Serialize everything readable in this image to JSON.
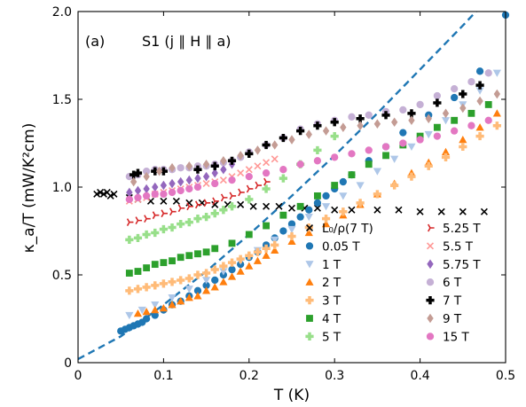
{
  "chart_data": {
    "type": "scatter",
    "panel_label": "(a)",
    "title": "S1 (j ∥ H ∥ a)",
    "xlabel": "T (K)",
    "ylabel": "κ_a/T (mW/K²cm)",
    "xlim": [
      0,
      0.5
    ],
    "ylim": [
      0,
      2.0
    ],
    "xticks": [
      "0",
      "0.1",
      "0.2",
      "0.3",
      "0.4",
      "0.5"
    ],
    "yticks": [
      "0",
      "0.5",
      "1.0",
      "1.5",
      "2.0"
    ],
    "grid": false,
    "legend_position": "lower-right, two columns",
    "dashed_fit": {
      "color": "#1f77b4",
      "x": [
        0,
        0.05,
        0.1,
        0.15,
        0.2,
        0.25,
        0.3,
        0.35,
        0.4,
        0.45,
        0.5
      ],
      "y": [
        0.02,
        0.15,
        0.33,
        0.52,
        0.73,
        0.95,
        1.18,
        1.42,
        1.67,
        1.92,
        2.18
      ]
    },
    "series": [
      {
        "name": "L₀/ρ(7 T)",
        "marker": "x",
        "color": "#000000",
        "x": [
          0.022,
          0.026,
          0.03,
          0.034,
          0.038,
          0.042,
          0.06,
          0.07,
          0.085,
          0.1,
          0.115,
          0.13,
          0.145,
          0.16,
          0.175,
          0.19,
          0.205,
          0.22,
          0.235,
          0.25,
          0.265,
          0.28,
          0.3,
          0.32,
          0.35,
          0.375,
          0.4,
          0.425,
          0.45,
          0.475
        ],
        "y": [
          0.96,
          0.97,
          0.96,
          0.97,
          0.95,
          0.96,
          0.94,
          0.93,
          0.92,
          0.92,
          0.92,
          0.91,
          0.91,
          0.9,
          0.9,
          0.9,
          0.89,
          0.89,
          0.89,
          0.88,
          0.88,
          0.88,
          0.87,
          0.87,
          0.87,
          0.87,
          0.86,
          0.86,
          0.86,
          0.86
        ]
      },
      {
        "name": "0.05 T",
        "marker": "circle",
        "color": "#1f77b4",
        "x": [
          0.05,
          0.055,
          0.06,
          0.065,
          0.07,
          0.075,
          0.08,
          0.09,
          0.1,
          0.11,
          0.12,
          0.13,
          0.14,
          0.15,
          0.16,
          0.17,
          0.18,
          0.19,
          0.2,
          0.21,
          0.22,
          0.23,
          0.24,
          0.25,
          0.26,
          0.27,
          0.28,
          0.29,
          0.3,
          0.31,
          0.32,
          0.34,
          0.36,
          0.38,
          0.41,
          0.44,
          0.47,
          0.5
        ],
        "y": [
          0.18,
          0.19,
          0.2,
          0.21,
          0.22,
          0.23,
          0.25,
          0.27,
          0.3,
          0.33,
          0.35,
          0.38,
          0.41,
          0.44,
          0.47,
          0.5,
          0.53,
          0.56,
          0.6,
          0.63,
          0.67,
          0.71,
          0.75,
          0.79,
          0.83,
          0.87,
          0.91,
          0.95,
          0.99,
          1.03,
          1.07,
          1.15,
          1.23,
          1.31,
          1.41,
          1.51,
          1.66,
          1.98
        ]
      },
      {
        "name": "1 T",
        "marker": "triangle-down",
        "color": "#aec7e8",
        "x": [
          0.06,
          0.075,
          0.09,
          0.11,
          0.13,
          0.15,
          0.17,
          0.19,
          0.21,
          0.23,
          0.25,
          0.27,
          0.29,
          0.31,
          0.33,
          0.35,
          0.37,
          0.39,
          0.41,
          0.43,
          0.45,
          0.47,
          0.49
        ],
        "y": [
          0.27,
          0.3,
          0.33,
          0.37,
          0.42,
          0.47,
          0.52,
          0.58,
          0.64,
          0.7,
          0.76,
          0.83,
          0.89,
          0.95,
          1.01,
          1.09,
          1.16,
          1.23,
          1.3,
          1.38,
          1.47,
          1.55,
          1.65
        ]
      },
      {
        "name": "2 T",
        "marker": "triangle-up",
        "color": "#ff7f0e",
        "x": [
          0.07,
          0.08,
          0.09,
          0.1,
          0.11,
          0.12,
          0.13,
          0.14,
          0.15,
          0.16,
          0.17,
          0.18,
          0.19,
          0.2,
          0.21,
          0.22,
          0.23,
          0.25,
          0.27,
          0.29,
          0.31,
          0.33,
          0.35,
          0.37,
          0.39,
          0.41,
          0.43,
          0.45,
          0.47,
          0.49
        ],
        "y": [
          0.28,
          0.29,
          0.3,
          0.31,
          0.33,
          0.35,
          0.37,
          0.38,
          0.41,
          0.43,
          0.46,
          0.49,
          0.52,
          0.55,
          0.58,
          0.61,
          0.64,
          0.69,
          0.74,
          0.79,
          0.84,
          0.9,
          0.96,
          1.02,
          1.08,
          1.14,
          1.2,
          1.27,
          1.34,
          1.42
        ]
      },
      {
        "name": "3 T",
        "marker": "plus-filled",
        "color": "#ffbb78",
        "x": [
          0.06,
          0.07,
          0.08,
          0.09,
          0.1,
          0.11,
          0.12,
          0.13,
          0.14,
          0.15,
          0.16,
          0.17,
          0.18,
          0.19,
          0.2,
          0.21,
          0.22,
          0.23,
          0.25,
          0.27,
          0.29,
          0.31,
          0.33,
          0.35,
          0.37,
          0.39,
          0.41,
          0.43,
          0.45,
          0.47,
          0.49
        ],
        "y": [
          0.41,
          0.42,
          0.43,
          0.44,
          0.45,
          0.46,
          0.47,
          0.48,
          0.5,
          0.51,
          0.53,
          0.55,
          0.57,
          0.59,
          0.61,
          0.63,
          0.65,
          0.67,
          0.72,
          0.77,
          0.82,
          0.86,
          0.91,
          0.96,
          1.01,
          1.06,
          1.12,
          1.17,
          1.23,
          1.29,
          1.35
        ]
      },
      {
        "name": "4 T",
        "marker": "square",
        "color": "#2ca02c",
        "x": [
          0.06,
          0.07,
          0.08,
          0.09,
          0.1,
          0.11,
          0.12,
          0.13,
          0.14,
          0.15,
          0.16,
          0.18,
          0.2,
          0.22,
          0.24,
          0.26,
          0.28,
          0.3,
          0.32,
          0.34,
          0.36,
          0.38,
          0.4,
          0.42,
          0.44,
          0.46,
          0.48
        ],
        "y": [
          0.51,
          0.52,
          0.54,
          0.56,
          0.57,
          0.58,
          0.6,
          0.61,
          0.62,
          0.63,
          0.65,
          0.68,
          0.73,
          0.78,
          0.84,
          0.89,
          0.95,
          1.01,
          1.07,
          1.13,
          1.18,
          1.24,
          1.29,
          1.34,
          1.38,
          1.42,
          1.47
        ]
      },
      {
        "name": "5 T",
        "marker": "plus-filled",
        "color": "#98df8a",
        "x": [
          0.06,
          0.07,
          0.08,
          0.09,
          0.1,
          0.11,
          0.12,
          0.13,
          0.14,
          0.15,
          0.16,
          0.17,
          0.18,
          0.2,
          0.22,
          0.24,
          0.26,
          0.28,
          0.3
        ],
        "y": [
          0.7,
          0.71,
          0.73,
          0.74,
          0.76,
          0.77,
          0.79,
          0.8,
          0.82,
          0.83,
          0.85,
          0.87,
          0.89,
          0.93,
          0.99,
          1.05,
          1.13,
          1.21,
          1.29
        ]
      },
      {
        "name": "5.25 T",
        "marker": "tri-right",
        "color": "#d62728",
        "x": [
          0.06,
          0.07,
          0.08,
          0.09,
          0.1,
          0.11,
          0.12,
          0.13,
          0.14,
          0.15,
          0.16,
          0.17,
          0.18,
          0.19,
          0.2,
          0.21,
          0.22
        ],
        "y": [
          0.8,
          0.81,
          0.82,
          0.84,
          0.85,
          0.86,
          0.88,
          0.89,
          0.9,
          0.91,
          0.92,
          0.94,
          0.95,
          0.97,
          0.99,
          1.01,
          1.03
        ]
      },
      {
        "name": "5.5 T",
        "marker": "x",
        "color": "#ff9896",
        "x": [
          0.06,
          0.07,
          0.08,
          0.09,
          0.1,
          0.11,
          0.12,
          0.13,
          0.14,
          0.15,
          0.16,
          0.17,
          0.18,
          0.19,
          0.2,
          0.21,
          0.22,
          0.23
        ],
        "y": [
          0.92,
          0.93,
          0.94,
          0.96,
          0.97,
          0.98,
          0.99,
          1.0,
          1.01,
          1.02,
          1.03,
          1.04,
          1.06,
          1.08,
          1.1,
          1.12,
          1.14,
          1.16
        ]
      },
      {
        "name": "5.75 T",
        "marker": "diamond",
        "color": "#9467bd",
        "x": [
          0.06,
          0.07,
          0.08,
          0.09,
          0.1,
          0.11,
          0.12,
          0.13,
          0.14,
          0.15,
          0.16,
          0.17,
          0.18
        ],
        "y": [
          0.97,
          0.98,
          0.99,
          1.0,
          1.01,
          1.02,
          1.03,
          1.04,
          1.05,
          1.06,
          1.08,
          1.1,
          1.13
        ]
      },
      {
        "name": "6 T",
        "marker": "circle",
        "color": "#c5b0d5",
        "x": [
          0.06,
          0.07,
          0.08,
          0.09,
          0.1,
          0.11,
          0.12,
          0.13,
          0.14,
          0.15,
          0.16,
          0.17,
          0.18,
          0.19,
          0.2,
          0.22,
          0.24,
          0.26,
          0.28,
          0.3,
          0.32,
          0.34,
          0.36,
          0.38,
          0.4,
          0.42,
          0.44,
          0.46,
          0.48
        ],
        "y": [
          1.06,
          1.07,
          1.09,
          1.1,
          1.1,
          1.1,
          1.11,
          1.11,
          1.12,
          1.12,
          1.13,
          1.14,
          1.15,
          1.17,
          1.2,
          1.24,
          1.28,
          1.33,
          1.36,
          1.38,
          1.4,
          1.41,
          1.43,
          1.44,
          1.47,
          1.52,
          1.56,
          1.6,
          1.65
        ]
      },
      {
        "name": "7 T",
        "marker": "plus-filled",
        "color": "#000000",
        "x": [
          0.065,
          0.07,
          0.09,
          0.1,
          0.14,
          0.16,
          0.18,
          0.2,
          0.22,
          0.24,
          0.26,
          0.28,
          0.3,
          0.33,
          0.36,
          0.39,
          0.42,
          0.45,
          0.47
        ],
        "y": [
          1.07,
          1.08,
          1.09,
          1.09,
          1.1,
          1.12,
          1.15,
          1.19,
          1.24,
          1.28,
          1.32,
          1.35,
          1.37,
          1.39,
          1.41,
          1.42,
          1.48,
          1.53,
          1.58
        ]
      },
      {
        "name": "9 T",
        "marker": "diamond",
        "color": "#c49c94",
        "x": [
          0.065,
          0.08,
          0.095,
          0.11,
          0.13,
          0.15,
          0.17,
          0.19,
          0.21,
          0.23,
          0.25,
          0.27,
          0.29,
          0.31,
          0.33,
          0.35,
          0.37,
          0.39,
          0.41,
          0.43,
          0.45,
          0.47,
          0.49
        ],
        "y": [
          1.03,
          1.06,
          1.09,
          1.11,
          1.12,
          1.13,
          1.15,
          1.18,
          1.21,
          1.24,
          1.27,
          1.3,
          1.32,
          1.34,
          1.35,
          1.36,
          1.37,
          1.38,
          1.39,
          1.42,
          1.45,
          1.49,
          1.53
        ]
      },
      {
        "name": "15 T",
        "marker": "circle",
        "color": "#e377c2",
        "x": [
          0.06,
          0.07,
          0.08,
          0.09,
          0.1,
          0.11,
          0.12,
          0.13,
          0.14,
          0.16,
          0.18,
          0.2,
          0.22,
          0.24,
          0.26,
          0.28,
          0.3,
          0.32,
          0.34,
          0.36,
          0.38,
          0.4,
          0.42,
          0.44,
          0.46,
          0.48
        ],
        "y": [
          0.93,
          0.94,
          0.95,
          0.96,
          0.96,
          0.97,
          0.98,
          0.99,
          1.0,
          1.02,
          1.04,
          1.06,
          1.08,
          1.1,
          1.13,
          1.15,
          1.17,
          1.19,
          1.21,
          1.23,
          1.25,
          1.27,
          1.29,
          1.32,
          1.35,
          1.38
        ]
      }
    ]
  }
}
